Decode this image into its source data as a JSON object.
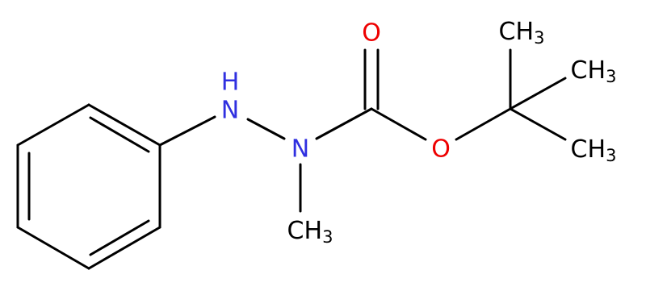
{
  "nodes": [
    {
      "label": "H"
    },
    {
      "label": "N"
    },
    {
      "label": "N"
    },
    {
      "label": "O"
    },
    {
      "label": "O"
    },
    {
      "label": "CH",
      "subscript": "3"
    },
    {
      "label": "CH",
      "subscript": "3"
    },
    {
      "label": "CH",
      "subscript": "3"
    },
    {
      "label": "CH",
      "subscript": "3"
    }
  ]
}
